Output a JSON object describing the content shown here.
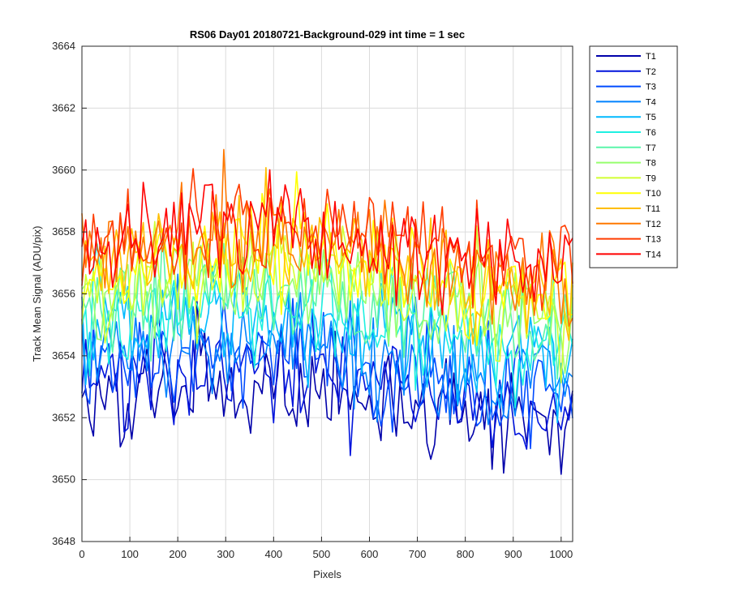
{
  "chart_data": {
    "type": "line",
    "title": "RS06 Day01 20180721-Background-029 int time = 1 sec",
    "xlabel": "Pixels",
    "ylabel": "Track Mean Signal (ADU/pix)",
    "xlim": [
      0,
      1024
    ],
    "ylim": [
      3648,
      3664
    ],
    "xticks": [
      0,
      100,
      200,
      300,
      400,
      500,
      600,
      700,
      800,
      900,
      1000
    ],
    "yticks": [
      3648,
      3650,
      3652,
      3654,
      3656,
      3658,
      3660,
      3662,
      3664
    ],
    "grid": true,
    "legend_position": "outside-top-right",
    "x_sample_step": 8,
    "series": [
      {
        "name": "T1",
        "color": "#0000AA",
        "profile": [
          3652.6,
          3652.9,
          3652.9,
          3653.0,
          3653.0,
          3652.9,
          3652.6,
          3652.3,
          3652.1,
          3652.0,
          3652.1
        ],
        "noise": 1.6
      },
      {
        "name": "T2",
        "color": "#0014DC",
        "profile": [
          3653.0,
          3653.3,
          3653.4,
          3653.5,
          3653.5,
          3653.3,
          3653.1,
          3652.8,
          3652.5,
          3652.4,
          3652.4
        ],
        "noise": 1.6
      },
      {
        "name": "T3",
        "color": "#004BFF",
        "profile": [
          3653.5,
          3653.8,
          3654.0,
          3654.1,
          3654.0,
          3653.9,
          3653.6,
          3653.3,
          3653.0,
          3652.9,
          3652.9
        ],
        "noise": 1.6
      },
      {
        "name": "T4",
        "color": "#0082FF",
        "profile": [
          3654.0,
          3654.3,
          3654.5,
          3654.6,
          3654.6,
          3654.4,
          3654.1,
          3653.8,
          3653.5,
          3653.3,
          3653.3
        ],
        "noise": 1.6
      },
      {
        "name": "T5",
        "color": "#00B9FF",
        "profile": [
          3654.4,
          3654.8,
          3655.0,
          3655.1,
          3655.1,
          3654.9,
          3654.6,
          3654.3,
          3654.0,
          3653.8,
          3653.8
        ],
        "noise": 1.6
      },
      {
        "name": "T6",
        "color": "#1EF0E1",
        "profile": [
          3654.9,
          3655.3,
          3655.5,
          3655.6,
          3655.6,
          3655.4,
          3655.1,
          3654.8,
          3654.5,
          3654.3,
          3654.3
        ],
        "noise": 1.6
      },
      {
        "name": "T7",
        "color": "#5AF5AA",
        "profile": [
          3655.3,
          3655.7,
          3656.0,
          3656.1,
          3656.1,
          3655.9,
          3655.6,
          3655.3,
          3654.9,
          3654.7,
          3654.7
        ],
        "noise": 1.6
      },
      {
        "name": "T8",
        "color": "#96FF6E",
        "profile": [
          3655.7,
          3656.1,
          3656.4,
          3656.6,
          3656.6,
          3656.4,
          3656.1,
          3655.7,
          3655.3,
          3655.1,
          3655.1
        ],
        "noise": 1.6
      },
      {
        "name": "T9",
        "color": "#D2FF32",
        "profile": [
          3656.1,
          3656.5,
          3656.8,
          3657.0,
          3657.0,
          3656.9,
          3656.5,
          3656.1,
          3655.7,
          3655.5,
          3655.5
        ],
        "noise": 1.6
      },
      {
        "name": "T10",
        "color": "#FFFF00",
        "profile": [
          3656.5,
          3656.9,
          3657.2,
          3657.4,
          3657.4,
          3657.3,
          3656.9,
          3656.5,
          3656.1,
          3655.9,
          3655.9
        ],
        "noise": 1.6
      },
      {
        "name": "T11",
        "color": "#FFBE00",
        "profile": [
          3656.8,
          3657.3,
          3657.6,
          3657.8,
          3657.8,
          3657.7,
          3657.3,
          3656.9,
          3656.5,
          3656.3,
          3656.3
        ],
        "noise": 1.6
      },
      {
        "name": "T12",
        "color": "#FF7800",
        "profile": [
          3657.1,
          3657.5,
          3657.8,
          3658.0,
          3658.0,
          3657.9,
          3657.6,
          3657.2,
          3656.8,
          3656.6,
          3656.6
        ],
        "noise": 1.6
      },
      {
        "name": "T13",
        "color": "#FF3C00",
        "profile": [
          3657.3,
          3657.6,
          3657.9,
          3658.1,
          3658.1,
          3658.0,
          3657.7,
          3657.4,
          3657.0,
          3656.8,
          3656.8
        ],
        "noise": 1.6
      },
      {
        "name": "T14",
        "color": "#FF0000",
        "profile": [
          3657.4,
          3657.7,
          3658.0,
          3658.2,
          3658.2,
          3658.1,
          3657.8,
          3657.5,
          3657.1,
          3656.9,
          3656.9
        ],
        "noise": 1.6
      }
    ]
  }
}
